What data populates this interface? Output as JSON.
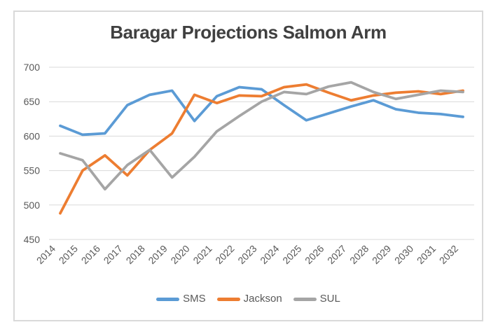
{
  "chart_data": {
    "type": "line",
    "title": "Baragar Projections Salmon Arm",
    "categories": [
      "2014",
      "2015",
      "2016",
      "2017",
      "2018",
      "2019",
      "2020",
      "2021",
      "2022",
      "2023",
      "2024",
      "2025",
      "2026",
      "2027",
      "2028",
      "2029",
      "2030",
      "2031",
      "2032"
    ],
    "series": [
      {
        "name": "SMS",
        "color": "#5B9BD5",
        "values": [
          615,
          602,
          604,
          645,
          660,
          666,
          622,
          658,
          671,
          668,
          645,
          623,
          633,
          643,
          652,
          639,
          634,
          632,
          628
        ]
      },
      {
        "name": "Jackson",
        "color": "#ED7D31",
        "values": [
          488,
          550,
          572,
          543,
          580,
          604,
          660,
          648,
          659,
          658,
          671,
          675,
          663,
          652,
          659,
          663,
          665,
          661,
          666
        ]
      },
      {
        "name": "SUL",
        "color": "#A5A5A5",
        "values": [
          575,
          565,
          523,
          558,
          580,
          540,
          570,
          607,
          629,
          650,
          664,
          661,
          672,
          678,
          664,
          654,
          660,
          666,
          664
        ]
      }
    ],
    "xlabel": "",
    "ylabel": "",
    "ylim": [
      450,
      700
    ],
    "yticks": [
      450,
      500,
      550,
      600,
      650,
      700
    ],
    "grid": "horizontal-only",
    "legend_position": "bottom"
  }
}
